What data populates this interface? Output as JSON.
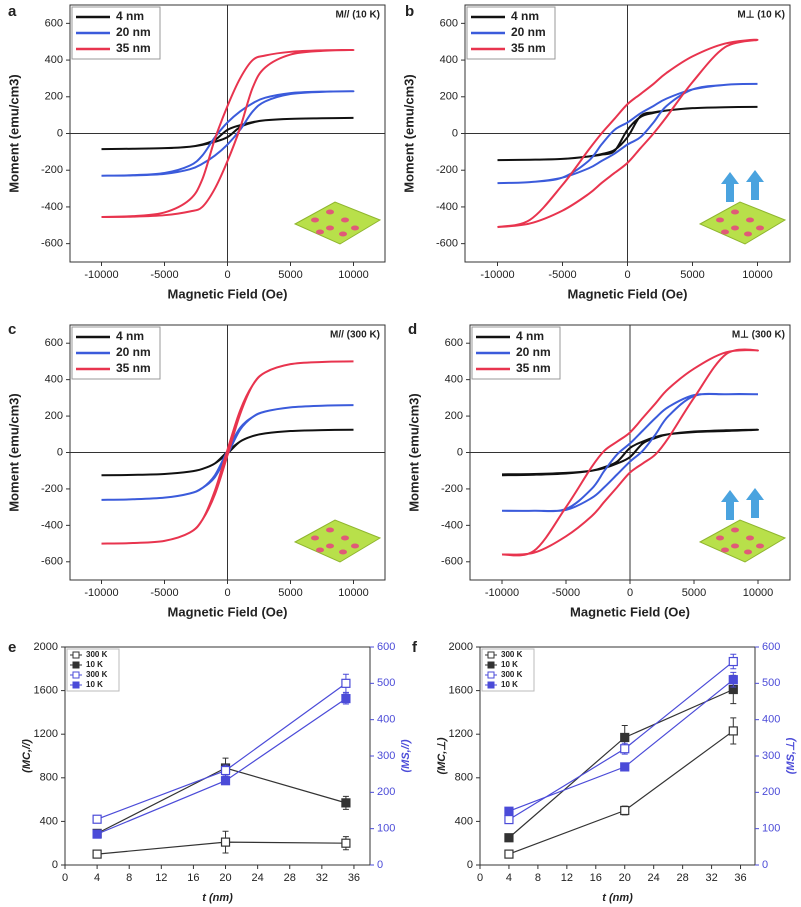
{
  "chart_data": [
    {
      "type": "line",
      "label": "a",
      "annotation": "M// (10 K)",
      "xlabel": "Magnetic Field (Oe)",
      "ylabel": "Moment (emu/cm3)",
      "legend": "upper left",
      "xlim": [
        -12500,
        12500
      ],
      "ylim": [
        -700,
        700
      ],
      "xticks": [
        -10000,
        -5000,
        0,
        5000,
        10000
      ],
      "yticks": [
        -600,
        -400,
        -200,
        0,
        200,
        400,
        600
      ],
      "x": [
        -10000,
        -7500,
        -5000,
        -3000,
        -2000,
        -1000,
        0,
        1000,
        2000,
        3000,
        5000,
        7500,
        10000,
        7500,
        5000,
        3000,
        2000,
        1000,
        0,
        -1000,
        -2000,
        -3000,
        -5000,
        -7500,
        -10000
      ],
      "series": [
        {
          "name": "4 nm",
          "color": "#111111",
          "values": [
            -85,
            -83,
            -80,
            -72,
            -62,
            -45,
            -20,
            35,
            60,
            72,
            80,
            83,
            85,
            83,
            80,
            72,
            62,
            45,
            20,
            -35,
            -60,
            -72,
            -80,
            -83,
            -85
          ]
        },
        {
          "name": "20 nm",
          "color": "#3b5bdb",
          "values": [
            -230,
            -228,
            -220,
            -195,
            -165,
            -120,
            -60,
            20,
            120,
            175,
            215,
            227,
            230,
            228,
            220,
            195,
            165,
            120,
            60,
            -20,
            -120,
            -175,
            -215,
            -227,
            -230
          ]
        },
        {
          "name": "35 nm",
          "color": "#e8344e",
          "values": [
            -455,
            -453,
            -445,
            -425,
            -400,
            -300,
            -150,
            30,
            250,
            360,
            430,
            450,
            455,
            453,
            445,
            425,
            400,
            300,
            150,
            -30,
            -250,
            -360,
            -430,
            -450,
            -455
          ]
        }
      ]
    },
    {
      "type": "line",
      "label": "b",
      "annotation": "M⊥ (10 K)",
      "xlabel": "Magnetic Field (Oe)",
      "ylabel": "Moment (emu/cm3)",
      "legend": "upper left",
      "xlim": [
        -12500,
        12500
      ],
      "ylim": [
        -700,
        700
      ],
      "xticks": [
        -10000,
        -5000,
        0,
        5000,
        10000
      ],
      "yticks": [
        -600,
        -400,
        -200,
        0,
        200,
        400,
        600
      ],
      "x": [
        -10000,
        -7500,
        -5000,
        -3000,
        -2000,
        -1000,
        0,
        1000,
        2000,
        3000,
        5000,
        7500,
        10000,
        7500,
        5000,
        3000,
        2000,
        1000,
        0,
        -1000,
        -2000,
        -3000,
        -5000,
        -7500,
        -10000
      ],
      "series": [
        {
          "name": "4 nm",
          "color": "#111111",
          "values": [
            -145,
            -143,
            -138,
            -125,
            -112,
            -90,
            -20,
            95,
            115,
            125,
            138,
            143,
            145,
            143,
            138,
            125,
            112,
            90,
            20,
            -95,
            -115,
            -125,
            -138,
            -143,
            -145
          ]
        },
        {
          "name": "20 nm",
          "color": "#3b5bdb",
          "values": [
            -270,
            -265,
            -240,
            -190,
            -150,
            -110,
            -60,
            -20,
            60,
            150,
            240,
            265,
            270,
            265,
            240,
            190,
            150,
            110,
            60,
            20,
            -60,
            -150,
            -240,
            -265,
            -270
          ]
        },
        {
          "name": "35 nm",
          "color": "#e8344e",
          "values": [
            -510,
            -490,
            -420,
            -330,
            -270,
            -215,
            -160,
            -80,
            0,
            90,
            280,
            470,
            510,
            490,
            420,
            330,
            270,
            215,
            160,
            80,
            0,
            -90,
            -280,
            -470,
            -510
          ]
        }
      ]
    },
    {
      "type": "line",
      "label": "c",
      "annotation": "M// (300 K)",
      "xlabel": "Magnetic Field (Oe)",
      "ylabel": "Moment (emu/cm3)",
      "legend": "upper left",
      "xlim": [
        -12500,
        12500
      ],
      "ylim": [
        -700,
        700
      ],
      "xticks": [
        -10000,
        -5000,
        0,
        5000,
        10000
      ],
      "yticks": [
        -600,
        -400,
        -200,
        0,
        200,
        400,
        600
      ],
      "x": [
        -10000,
        -7500,
        -5000,
        -3000,
        -2000,
        -1000,
        0,
        1000,
        2000,
        3000,
        5000,
        7500,
        10000,
        7500,
        5000,
        3000,
        2000,
        1000,
        0,
        -1000,
        -2000,
        -3000,
        -5000,
        -7500,
        -10000
      ],
      "series": [
        {
          "name": "4 nm",
          "color": "#111111",
          "values": [
            -125,
            -123,
            -118,
            -105,
            -90,
            -60,
            -5,
            60,
            90,
            105,
            118,
            123,
            125,
            123,
            118,
            105,
            90,
            60,
            5,
            -60,
            -90,
            -105,
            -118,
            -123,
            -125
          ]
        },
        {
          "name": "20 nm",
          "color": "#3b5bdb",
          "values": [
            -260,
            -257,
            -248,
            -225,
            -195,
            -135,
            -10,
            125,
            195,
            225,
            248,
            257,
            260,
            257,
            248,
            225,
            195,
            135,
            10,
            -125,
            -195,
            -225,
            -248,
            -257,
            -260
          ]
        },
        {
          "name": "35 nm",
          "color": "#e8344e",
          "values": [
            -500,
            -497,
            -485,
            -440,
            -370,
            -230,
            -15,
            210,
            370,
            440,
            485,
            497,
            500,
            497,
            485,
            440,
            370,
            230,
            15,
            -210,
            -370,
            -440,
            -485,
            -497,
            -500
          ]
        }
      ]
    },
    {
      "type": "line",
      "label": "d",
      "annotation": "M⊥ (300 K)",
      "xlabel": "Magnetic Field (Oe)",
      "ylabel": "Moment (emu/cm3)",
      "legend": "upper left",
      "xlim": [
        -12500,
        12500
      ],
      "ylim": [
        -700,
        700
      ],
      "xticks": [
        -10000,
        -5000,
        0,
        5000,
        10000
      ],
      "yticks": [
        -600,
        -400,
        -200,
        0,
        200,
        400,
        600
      ],
      "x": [
        -10000,
        -7500,
        -5000,
        -3000,
        -2000,
        -1000,
        0,
        1000,
        2000,
        3000,
        5000,
        7500,
        10000,
        7500,
        5000,
        3000,
        2000,
        1000,
        0,
        -1000,
        -2000,
        -3000,
        -5000,
        -7500,
        -10000
      ],
      "series": [
        {
          "name": "4 nm",
          "color": "#111111",
          "values": [
            -120,
            -118,
            -112,
            -100,
            -85,
            -60,
            -25,
            50,
            80,
            100,
            115,
            122,
            125,
            118,
            112,
            100,
            85,
            60,
            25,
            -50,
            -80,
            -100,
            -115,
            -122,
            -125
          ]
        },
        {
          "name": "20 nm",
          "color": "#3b5bdb",
          "values": [
            -320,
            -320,
            -315,
            -250,
            -190,
            -120,
            -50,
            10,
            100,
            200,
            310,
            320,
            320,
            320,
            315,
            250,
            190,
            120,
            50,
            -10,
            -100,
            -200,
            -310,
            -320,
            -320
          ]
        },
        {
          "name": "35 nm",
          "color": "#e8344e",
          "values": [
            -560,
            -550,
            -460,
            -350,
            -270,
            -190,
            -110,
            -60,
            -10,
            80,
            300,
            540,
            560,
            550,
            460,
            350,
            270,
            190,
            110,
            60,
            10,
            -80,
            -300,
            -540,
            -560
          ]
        }
      ]
    },
    {
      "type": "scatter",
      "label": "e",
      "xlabel": "t (nm)",
      "ylabel": "(MC,//)",
      "y2label": "(MS,//)",
      "legend": "upper left",
      "xlim": [
        0,
        38
      ],
      "ylim": [
        0,
        2000
      ],
      "y2lim": [
        0,
        600
      ],
      "xticks": [
        0,
        4,
        8,
        12,
        16,
        20,
        24,
        28,
        32,
        36
      ],
      "yticks": [
        0,
        400,
        800,
        1200,
        1600,
        2000
      ],
      "y2ticks": [
        0,
        100,
        200,
        300,
        400,
        500,
        600
      ],
      "x": [
        4,
        20,
        35
      ],
      "series": [
        {
          "name": "300 K",
          "color": "#333333",
          "marker": "open",
          "values": [
            100,
            210,
            200
          ],
          "errors": [
            30,
            100,
            60
          ]
        },
        {
          "name": "10 K",
          "color": "#333333",
          "marker": "filled",
          "values": [
            290,
            890,
            570
          ],
          "errors": [
            20,
            90,
            60
          ]
        },
        {
          "name": "300 K",
          "color": "#4b4bd8",
          "marker": "open",
          "axis": "y2",
          "values": [
            126,
            260,
            500
          ],
          "errors": [
            8,
            15,
            25
          ]
        },
        {
          "name": "10 K",
          "color": "#4b4bd8",
          "marker": "filled",
          "axis": "y2",
          "values": [
            85,
            232,
            458
          ],
          "errors": [
            8,
            10,
            15
          ]
        }
      ]
    },
    {
      "type": "scatter",
      "label": "f",
      "xlabel": "t (nm)",
      "ylabel": "(MC,⊥)",
      "y2label": "(MS,⊥)",
      "legend": "upper left",
      "xlim": [
        0,
        38
      ],
      "ylim": [
        0,
        2000
      ],
      "y2lim": [
        0,
        600
      ],
      "xticks": [
        0,
        4,
        8,
        12,
        16,
        20,
        24,
        28,
        32,
        36
      ],
      "yticks": [
        0,
        400,
        800,
        1200,
        1600,
        2000
      ],
      "y2ticks": [
        0,
        100,
        200,
        300,
        400,
        500,
        600
      ],
      "x": [
        4,
        20,
        35
      ],
      "series": [
        {
          "name": "300 K",
          "color": "#333333",
          "marker": "open",
          "values": [
            100,
            500,
            1230
          ],
          "errors": [
            20,
            40,
            120
          ]
        },
        {
          "name": "10 K",
          "color": "#333333",
          "marker": "filled",
          "values": [
            250,
            1170,
            1610
          ],
          "errors": [
            20,
            110,
            130
          ]
        },
        {
          "name": "300 K",
          "color": "#4b4bd8",
          "marker": "open",
          "axis": "y2",
          "values": [
            125,
            320,
            560
          ],
          "errors": [
            8,
            15,
            20
          ]
        },
        {
          "name": "10 K",
          "color": "#4b4bd8",
          "marker": "filled",
          "axis": "y2",
          "values": [
            148,
            270,
            510
          ],
          "errors": [
            8,
            10,
            20
          ]
        }
      ]
    }
  ]
}
